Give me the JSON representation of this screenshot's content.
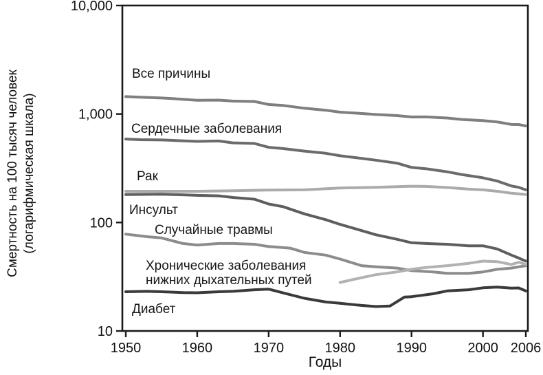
{
  "chart_data": {
    "type": "line",
    "x_range": [
      1950,
      2006
    ],
    "y_range": [
      10,
      10000
    ],
    "y_scale": "log",
    "grid": false,
    "legend_position": "inline-labels",
    "x_axis": {
      "title": "Годы",
      "ticks": [
        {
          "value": 1950,
          "label": "1950"
        },
        {
          "value": 1960,
          "label": "1960"
        },
        {
          "value": 1970,
          "label": "1970"
        },
        {
          "value": 1980,
          "label": "1980"
        },
        {
          "value": 1990,
          "label": "1990"
        },
        {
          "value": 2000,
          "label": "2000"
        },
        {
          "value": 2006,
          "label": "2006"
        }
      ]
    },
    "y_axis": {
      "title_lines": [
        "Смертность на 100 тысяч человек",
        "(логарифмическая шкала)"
      ],
      "ticks": [
        {
          "value": 10000,
          "label": "10,000"
        },
        {
          "value": 1000,
          "label": "1,000"
        },
        {
          "value": 100,
          "label": "100"
        },
        {
          "value": 10,
          "label": "10"
        }
      ]
    },
    "series": [
      {
        "id": "all-causes",
        "label_lines": [
          "Все причины"
        ],
        "color": "#7f7f7f",
        "points": [
          [
            1950,
            1446
          ],
          [
            1952,
            1430
          ],
          [
            1955,
            1404
          ],
          [
            1957,
            1380
          ],
          [
            1960,
            1339
          ],
          [
            1963,
            1343
          ],
          [
            1965,
            1315
          ],
          [
            1968,
            1304
          ],
          [
            1970,
            1222
          ],
          [
            1972,
            1200
          ],
          [
            1975,
            1130
          ],
          [
            1978,
            1083
          ],
          [
            1980,
            1039
          ],
          [
            1982,
            1020
          ],
          [
            1985,
            989
          ],
          [
            1988,
            966
          ],
          [
            1990,
            939
          ],
          [
            1992,
            940
          ],
          [
            1995,
            919
          ],
          [
            1997,
            890
          ],
          [
            2000,
            869
          ],
          [
            2002,
            845
          ],
          [
            2004,
            801
          ],
          [
            2005,
            799
          ],
          [
            2006,
            776
          ]
        ]
      },
      {
        "id": "heart-disease",
        "label_lines": [
          "Сердечные заболевания"
        ],
        "color": "#6b6b6b",
        "points": [
          [
            1950,
            587
          ],
          [
            1952,
            580
          ],
          [
            1955,
            576
          ],
          [
            1957,
            570
          ],
          [
            1960,
            559
          ],
          [
            1963,
            564
          ],
          [
            1965,
            542
          ],
          [
            1968,
            535
          ],
          [
            1970,
            493
          ],
          [
            1972,
            480
          ],
          [
            1975,
            455
          ],
          [
            1978,
            434
          ],
          [
            1980,
            412
          ],
          [
            1982,
            397
          ],
          [
            1985,
            375
          ],
          [
            1988,
            352
          ],
          [
            1990,
            322
          ],
          [
            1992,
            313
          ],
          [
            1995,
            293
          ],
          [
            1997,
            277
          ],
          [
            2000,
            258
          ],
          [
            2002,
            241
          ],
          [
            2004,
            217
          ],
          [
            2005,
            211
          ],
          [
            2006,
            200
          ]
        ]
      },
      {
        "id": "cancer",
        "label_lines": [
          "Рак"
        ],
        "color": "#ababab",
        "points": [
          [
            1950,
            194
          ],
          [
            1955,
            194
          ],
          [
            1960,
            194
          ],
          [
            1965,
            196
          ],
          [
            1970,
            199
          ],
          [
            1975,
            200
          ],
          [
            1980,
            208
          ],
          [
            1985,
            211
          ],
          [
            1988,
            214
          ],
          [
            1990,
            216
          ],
          [
            1992,
            215
          ],
          [
            1995,
            210
          ],
          [
            1998,
            203
          ],
          [
            2000,
            200
          ],
          [
            2002,
            194
          ],
          [
            2004,
            186
          ],
          [
            2006,
            181
          ]
        ]
      },
      {
        "id": "stroke",
        "label_lines": [
          "Инсульт"
        ],
        "color": "#5e5e5e",
        "points": [
          [
            1950,
            181
          ],
          [
            1955,
            182
          ],
          [
            1958,
            180
          ],
          [
            1960,
            178
          ],
          [
            1963,
            176
          ],
          [
            1965,
            170
          ],
          [
            1968,
            164
          ],
          [
            1970,
            148
          ],
          [
            1972,
            140
          ],
          [
            1975,
            120
          ],
          [
            1978,
            106
          ],
          [
            1980,
            96
          ],
          [
            1982,
            88
          ],
          [
            1985,
            77
          ],
          [
            1988,
            70
          ],
          [
            1990,
            65
          ],
          [
            1992,
            64
          ],
          [
            1995,
            63
          ],
          [
            1998,
            61
          ],
          [
            2000,
            61
          ],
          [
            2002,
            57
          ],
          [
            2004,
            50
          ],
          [
            2005,
            47
          ],
          [
            2006,
            44
          ]
        ]
      },
      {
        "id": "accidents",
        "label_lines": [
          "Случайные травмы"
        ],
        "color": "#8c8c8c",
        "points": [
          [
            1950,
            78
          ],
          [
            1953,
            74
          ],
          [
            1955,
            72
          ],
          [
            1958,
            64
          ],
          [
            1960,
            62
          ],
          [
            1963,
            64
          ],
          [
            1965,
            64
          ],
          [
            1968,
            63
          ],
          [
            1970,
            60
          ],
          [
            1973,
            58
          ],
          [
            1975,
            53
          ],
          [
            1978,
            50
          ],
          [
            1980,
            46
          ],
          [
            1983,
            40
          ],
          [
            1985,
            39
          ],
          [
            1988,
            38
          ],
          [
            1990,
            36
          ],
          [
            1993,
            35
          ],
          [
            1995,
            34
          ],
          [
            1998,
            34
          ],
          [
            2000,
            35
          ],
          [
            2002,
            37
          ],
          [
            2004,
            38
          ],
          [
            2005,
            39
          ],
          [
            2006,
            40
          ]
        ]
      },
      {
        "id": "clrd",
        "label_lines": [
          "Хронические заболевания",
          "нижних дыхательных путей"
        ],
        "color": "#b2b2b2",
        "points": [
          [
            1980,
            28
          ],
          [
            1982,
            30
          ],
          [
            1985,
            33
          ],
          [
            1988,
            35
          ],
          [
            1990,
            37
          ],
          [
            1992,
            38.5
          ],
          [
            1995,
            40
          ],
          [
            1998,
            42
          ],
          [
            2000,
            44
          ],
          [
            2002,
            43.5
          ],
          [
            2004,
            41
          ],
          [
            2005,
            43
          ],
          [
            2006,
            41
          ]
        ]
      },
      {
        "id": "diabetes",
        "label_lines": [
          "Диабет"
        ],
        "color": "#3a3a3a",
        "points": [
          [
            1950,
            23
          ],
          [
            1953,
            23.2
          ],
          [
            1955,
            23
          ],
          [
            1958,
            22.6
          ],
          [
            1960,
            22.5
          ],
          [
            1963,
            23
          ],
          [
            1965,
            23.2
          ],
          [
            1968,
            24
          ],
          [
            1970,
            24.3
          ],
          [
            1972,
            22.5
          ],
          [
            1975,
            20
          ],
          [
            1978,
            18.5
          ],
          [
            1980,
            18
          ],
          [
            1983,
            17.2
          ],
          [
            1985,
            16.8
          ],
          [
            1987,
            17
          ],
          [
            1989,
            20.5
          ],
          [
            1990,
            20.7
          ],
          [
            1993,
            22
          ],
          [
            1995,
            23.4
          ],
          [
            1998,
            24
          ],
          [
            2000,
            25
          ],
          [
            2002,
            25.4
          ],
          [
            2004,
            24.8
          ],
          [
            2005,
            24.9
          ],
          [
            2006,
            23.4
          ]
        ]
      }
    ]
  }
}
